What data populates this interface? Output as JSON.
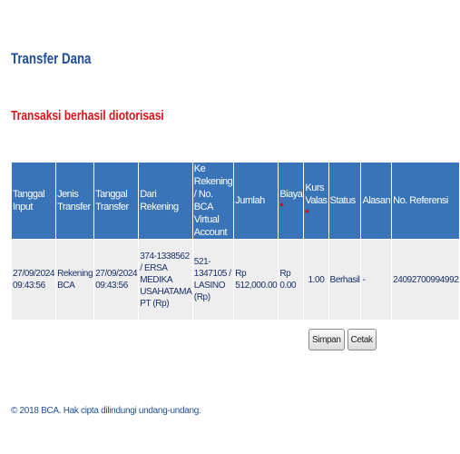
{
  "header": {
    "title": "Transfer Dana"
  },
  "status_message": "Transaksi berhasil diotorisasi",
  "table": {
    "headers": {
      "tanggal_input": "Tanggal Input",
      "jenis_transfer": "Jenis Transfer",
      "tanggal_transfer": "Tanggal Transfer",
      "dari_rekening": "Dari Rekening",
      "ke_rekening": "Ke Rekening / No. BCA Virtual Account",
      "jumlah": "Jumlah",
      "biaya": "Biaya",
      "kurs_valas": "Kurs Valas",
      "status": "Status",
      "alasan": "Alasan",
      "no_referensi": "No. Referensi",
      "required_marker": "*"
    },
    "row": {
      "tanggal_input": "27/09/2024 09:43:56",
      "jenis_transfer": "Rekening BCA",
      "tanggal_transfer": "27/09/2024 09:43:56",
      "dari_rekening": "374-1338562 / ERSA MEDIKA USAHATAMA PT (Rp)",
      "ke_rekening": "521-1347105 / LASINO (Rp)",
      "jumlah": "Rp 512,000.00",
      "biaya": "Rp 0.00",
      "kurs_valas": "1.00",
      "status": "Berhasil",
      "alasan": "-",
      "no_referensi": "24092700994992"
    }
  },
  "buttons": {
    "save": "Simpan",
    "print": "Cetak"
  },
  "footer": {
    "copyright": "© 2018 BCA. Hak cipta dilindungi undang-undang."
  }
}
